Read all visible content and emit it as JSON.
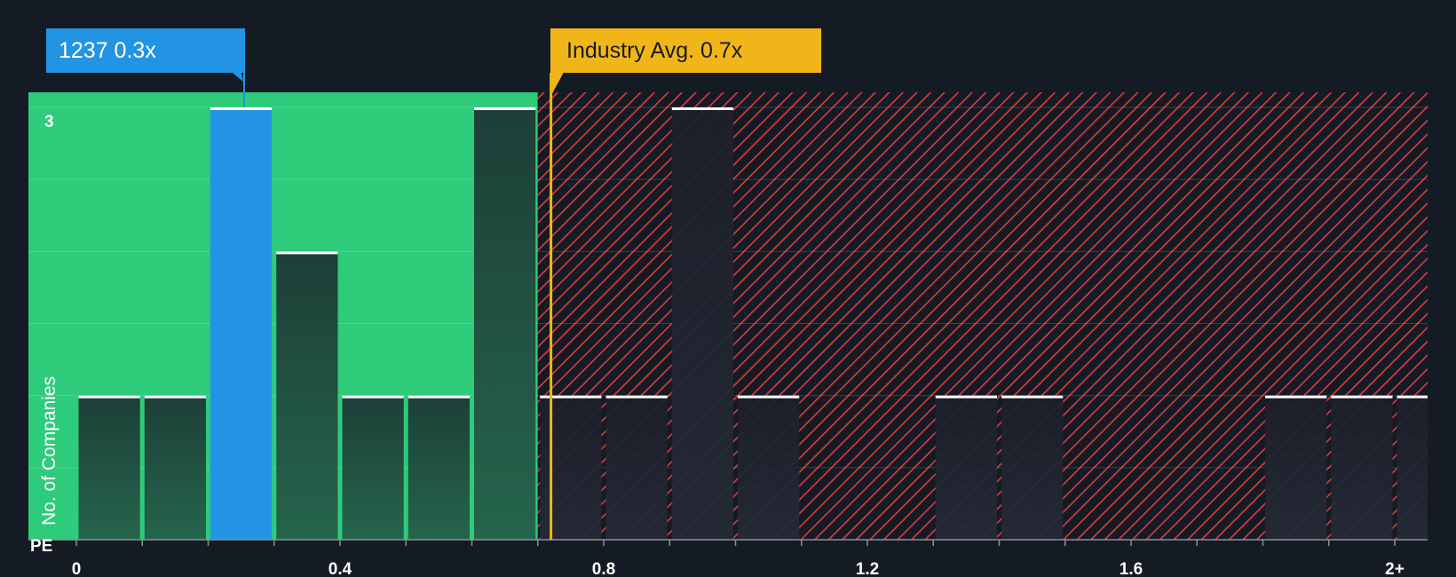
{
  "chart_data": {
    "type": "bar",
    "title": "",
    "xlabel": "PE",
    "ylabel": "No. of Companies",
    "xlim": [
      -0.07,
      2.05
    ],
    "ylim": [
      0,
      3.1
    ],
    "x_ticks": [
      {
        "value": 0,
        "label": "0"
      },
      {
        "value": 0.4,
        "label": "0.4"
      },
      {
        "value": 0.8,
        "label": "0.8"
      },
      {
        "value": 1.2,
        "label": "1.2"
      },
      {
        "value": 1.6,
        "label": "1.6"
      },
      {
        "value": 2.0,
        "label": "2+"
      }
    ],
    "y_ticks": [
      {
        "value": 3,
        "label": "3"
      }
    ],
    "bin_width": 0.1,
    "bins": [
      {
        "start": 0.0,
        "count": 1
      },
      {
        "start": 0.1,
        "count": 1
      },
      {
        "start": 0.2,
        "count": 3,
        "highlight": true
      },
      {
        "start": 0.3,
        "count": 2
      },
      {
        "start": 0.4,
        "count": 1
      },
      {
        "start": 0.5,
        "count": 1
      },
      {
        "start": 0.6,
        "count": 3
      },
      {
        "start": 0.7,
        "count": 1
      },
      {
        "start": 0.8,
        "count": 1
      },
      {
        "start": 0.9,
        "count": 3
      },
      {
        "start": 1.0,
        "count": 1
      },
      {
        "start": 1.3,
        "count": 1
      },
      {
        "start": 1.4,
        "count": 1
      },
      {
        "start": 1.8,
        "count": 1
      },
      {
        "start": 1.9,
        "count": 1
      },
      {
        "start": 2.0,
        "count": 1
      }
    ],
    "fair_zone_end": 0.7,
    "company": {
      "label": "1237 0.3x",
      "value": 0.25
    },
    "industry": {
      "label": "Industry Avg. 0.7x",
      "value": 0.72
    },
    "colors": {
      "background": "#151b24",
      "fair_zone": "#2ecb7b",
      "bar_in_fair": "#1e4a3c",
      "bar_in_over": "#1d212c",
      "highlight_bar": "#2394e3",
      "over_zone": "#e03a3e",
      "industry_line": "#f0b619",
      "bar_cap": "#ffffff"
    }
  }
}
